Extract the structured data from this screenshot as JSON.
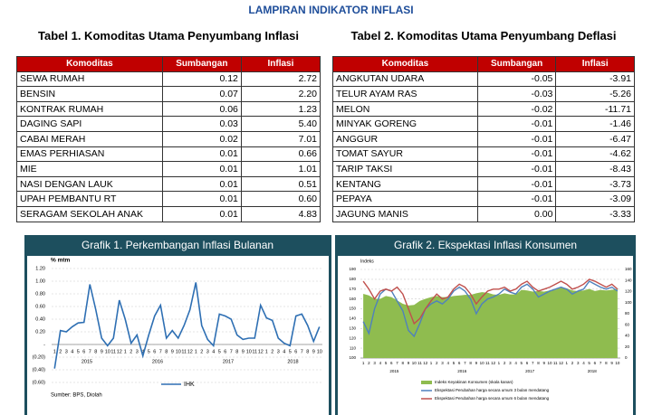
{
  "title": "LAMPIRAN INDIKATOR INFLASI",
  "tables": [
    {
      "title": "Tabel 1. Komoditas Utama Penyumbang Inflasi",
      "columns": [
        "Komoditas",
        "Sumbangan",
        "Inflasi"
      ],
      "rows": [
        [
          "SEWA RUMAH",
          "0.12",
          "2.72"
        ],
        [
          "BENSIN",
          "0.07",
          "2.20"
        ],
        [
          "KONTRAK RUMAH",
          "0.06",
          "1.23"
        ],
        [
          "DAGING SAPI",
          "0.03",
          "5.40"
        ],
        [
          "CABAI MERAH",
          "0.02",
          "7.01"
        ],
        [
          "EMAS PERHIASAN",
          "0.01",
          "0.66"
        ],
        [
          "MIE",
          "0.01",
          "1.01"
        ],
        [
          "NASI DENGAN LAUK",
          "0.01",
          "0.51"
        ],
        [
          "UPAH PEMBANTU RT",
          "0.01",
          "0.60"
        ],
        [
          "SERAGAM SEKOLAH ANAK",
          "0.01",
          "4.83"
        ]
      ]
    },
    {
      "title": "Tabel 2. Komoditas Utama Penyumbang Deflasi",
      "columns": [
        "Komoditas",
        "Sumbangan",
        "Inflasi"
      ],
      "rows": [
        [
          "ANGKUTAN UDARA",
          "-0.05",
          "-3.91"
        ],
        [
          "TELUR AYAM RAS",
          "-0.03",
          "-5.26"
        ],
        [
          "MELON",
          "-0.02",
          "-11.71"
        ],
        [
          "MINYAK GORENG",
          "-0.01",
          "-1.46"
        ],
        [
          "ANGGUR",
          "-0.01",
          "-6.47"
        ],
        [
          "TOMAT SAYUR",
          "-0.01",
          "-4.62"
        ],
        [
          "TARIP TAKSI",
          "-0.01",
          "-8.43"
        ],
        [
          "KENTANG",
          "-0.01",
          "-3.73"
        ],
        [
          "PEPAYA",
          "-0.01",
          "-3.09"
        ],
        [
          "JAGUNG MANIS",
          "0.00",
          "-3.33"
        ]
      ]
    }
  ],
  "chart_data": [
    {
      "type": "line",
      "title": "Grafik 1. Perkembangan Inflasi Bulanan",
      "y_label": "% mtm",
      "source": "Sumber: BPS, Diolah",
      "categories": [
        "1",
        "2",
        "3",
        "4",
        "5",
        "6",
        "7",
        "8",
        "9",
        "10",
        "11",
        "12",
        "1",
        "2",
        "3",
        "4",
        "5",
        "6",
        "7",
        "8",
        "9",
        "10",
        "11",
        "12",
        "1",
        "2",
        "3",
        "4",
        "5",
        "6",
        "7",
        "8",
        "9",
        "10",
        "11",
        "12",
        "1",
        "2",
        "3",
        "4",
        "5",
        "6",
        "7",
        "8",
        "9",
        "10"
      ],
      "groups": [
        "2015",
        "2016",
        "2017",
        "2018"
      ],
      "series": [
        {
          "name": "IHK",
          "color": "#2e6fb3",
          "values": [
            -0.38,
            0.22,
            0.2,
            0.28,
            0.34,
            0.35,
            0.95,
            0.55,
            0.1,
            -0.02,
            0.1,
            0.7,
            0.4,
            0.02,
            0.15,
            -0.18,
            0.15,
            0.45,
            0.62,
            0.1,
            0.22,
            0.1,
            0.3,
            0.55,
            0.98,
            0.3,
            0.08,
            -0.02,
            0.48,
            0.45,
            0.4,
            0.15,
            0.08,
            0.1,
            0.1,
            0.62,
            0.42,
            0.38,
            0.1,
            0.02,
            -0.02,
            0.45,
            0.48,
            0.3,
            0.05,
            0.28
          ]
        }
      ],
      "ylim": [
        -0.6,
        1.2
      ],
      "yticks": [
        {
          "value": 1.2,
          "label": "1.20"
        },
        {
          "value": 1,
          "label": "1.00"
        },
        {
          "value": 0.8,
          "label": "0.80"
        },
        {
          "value": 0.6,
          "label": "0.60"
        },
        {
          "value": 0.4,
          "label": "0.40"
        },
        {
          "value": 0.2,
          "label": "0.20"
        },
        {
          "value": 0,
          "label": "-"
        },
        {
          "value": -0.2,
          "label": "(0.20)"
        },
        {
          "value": -0.4,
          "label": "(0.40)"
        },
        {
          "value": -0.6,
          "label": "(0.60)"
        }
      ],
      "grid": true
    },
    {
      "type": "combo",
      "title": "Grafik 2. Ekspektasi Inflasi Konsumen",
      "y_label": "Indeks",
      "categories": [
        "1",
        "2",
        "3",
        "4",
        "5",
        "6",
        "7",
        "8",
        "9",
        "10",
        "11",
        "12",
        "1",
        "2",
        "3",
        "4",
        "5",
        "6",
        "7",
        "8",
        "9",
        "10",
        "11",
        "12",
        "1",
        "2",
        "3",
        "4",
        "5",
        "6",
        "7",
        "8",
        "9",
        "10",
        "11",
        "12",
        "1",
        "2",
        "3",
        "4",
        "5",
        "6",
        "7",
        "8",
        "9",
        "10"
      ],
      "groups": [
        "2015",
        "2016",
        "2017",
        "2018"
      ],
      "series": [
        {
          "name": "Indeks Keyakinan Konsumen (skala kanan)",
          "kind": "area",
          "axis": "y2",
          "color": "#8fbc4f",
          "values": [
            116,
            113,
            107,
            107,
            112,
            110,
            104,
            98,
            95,
            96,
            103,
            107,
            110,
            112,
            110,
            110,
            112,
            113,
            114,
            114,
            117,
            119,
            118,
            115,
            114,
            117,
            115,
            115,
            123,
            122,
            120,
            121,
            120,
            122,
            123,
            127,
            126,
            122,
            121,
            122,
            125,
            121,
            123,
            122,
            123,
            125
          ]
        },
        {
          "name": "Ekspektasi Perubahan harga secara umum 3 bulan mendatang",
          "kind": "line",
          "color": "#4f81bd",
          "values": [
            137,
            125,
            150,
            165,
            170,
            168,
            158,
            148,
            128,
            122,
            135,
            150,
            155,
            158,
            155,
            160,
            168,
            172,
            168,
            160,
            145,
            155,
            160,
            162,
            165,
            170,
            167,
            165,
            172,
            175,
            170,
            162,
            165,
            168,
            170,
            172,
            170,
            165,
            168,
            170,
            178,
            175,
            172,
            170,
            172,
            168
          ]
        },
        {
          "name": "Ekspektasi Perubahan harga secara umum 6 bulan mendatang",
          "kind": "line",
          "color": "#c0504d",
          "values": [
            178,
            170,
            160,
            168,
            170,
            168,
            172,
            165,
            150,
            135,
            140,
            150,
            158,
            165,
            160,
            162,
            170,
            175,
            172,
            165,
            155,
            162,
            168,
            170,
            170,
            172,
            168,
            170,
            175,
            178,
            172,
            168,
            170,
            172,
            175,
            178,
            175,
            170,
            172,
            175,
            180,
            178,
            175,
            172,
            175,
            170
          ]
        }
      ],
      "ylim": [
        100,
        190
      ],
      "yticks": [
        190,
        180,
        170,
        160,
        150,
        140,
        130,
        120,
        110,
        100
      ],
      "y2lim": [
        0,
        160
      ],
      "y2ticks": [
        160,
        140,
        120,
        100,
        80,
        60,
        40,
        20,
        0
      ],
      "grid": true
    }
  ]
}
